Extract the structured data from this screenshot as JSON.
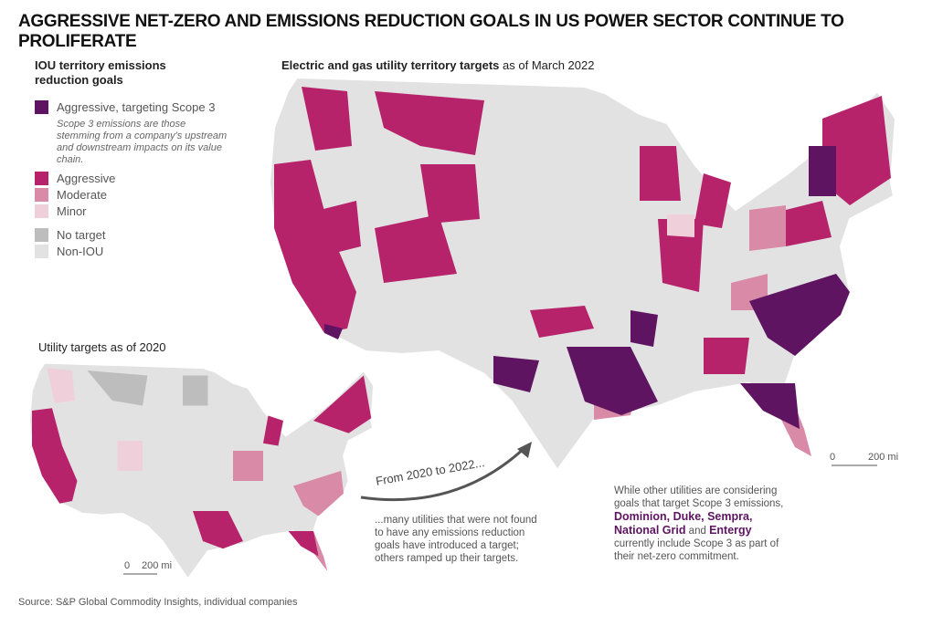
{
  "title": "AGGRESSIVE NET-ZERO AND EMISSIONS REDUCTION GOALS IN US POWER SECTOR CONTINUE TO PROLIFERATE",
  "legend": {
    "title": "IOU territory emissions reduction goals",
    "items": [
      {
        "label": "Aggressive, targeting Scope 3",
        "color": "#5e1461"
      },
      {
        "label": "Aggressive",
        "color": "#b7236b"
      },
      {
        "label": "Moderate",
        "color": "#d88aa6"
      },
      {
        "label": "Minor",
        "color": "#efd0da"
      },
      {
        "label": "No target",
        "color": "#bdbdbd"
      },
      {
        "label": "Non-IOU",
        "color": "#e2e2e2"
      }
    ],
    "scope3_note": "Scope 3 emissions are those stemming from a company's upstream and downstream impacts on its value chain."
  },
  "main_map": {
    "title_bold": "Electric and gas utility territory targets",
    "title_rest": " as of March 2022",
    "scale_zero": "0",
    "scale_label": "200 mi"
  },
  "small_map": {
    "title": "Utility targets as of 2020",
    "scale_zero": "0",
    "scale_label": "200 mi"
  },
  "arrow_label": "From 2020 to 2022...",
  "annotation_left": "...many utilities that were not found to have any emissions reduction goals have introduced a target; others ramped up their targets.",
  "annotation_right": {
    "pre": "While other utilities are considering goals that target Scope 3 emissions,",
    "companies_a": "Dominion, Duke, Sempra,",
    "companies_b": "National Grid",
    "and": " and ",
    "companies_c": "Entergy",
    "post": "currently include Scope 3 as part of their net-zero commitment."
  },
  "source": "Source: S&P Global Commodity Insights, individual companies"
}
